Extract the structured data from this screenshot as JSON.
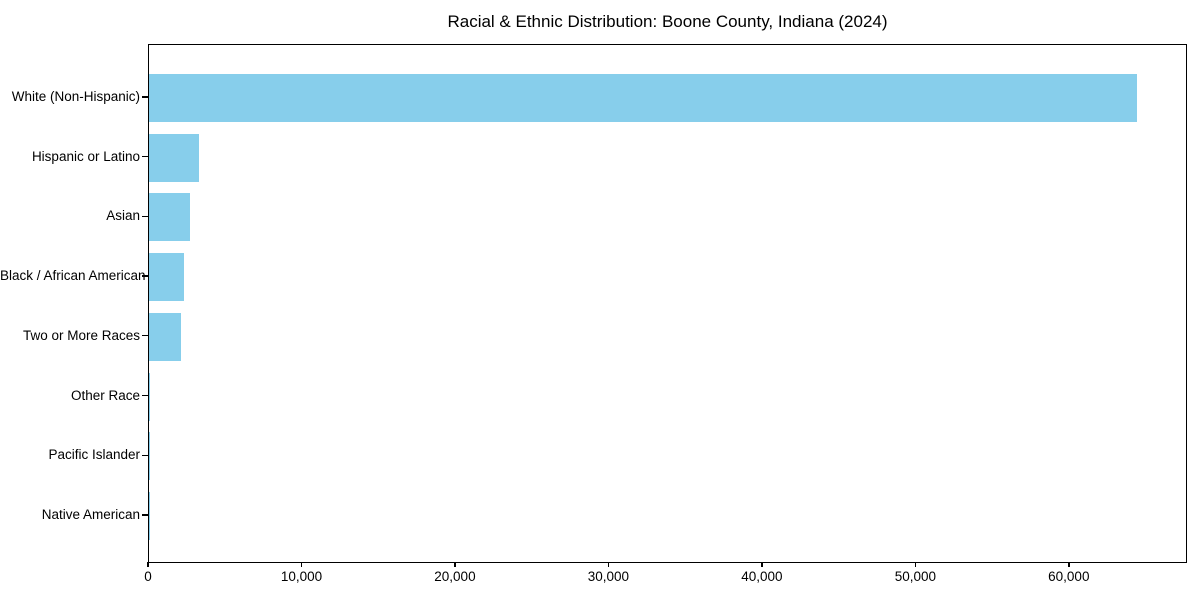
{
  "chart_data": {
    "type": "bar",
    "orientation": "horizontal",
    "title": "Racial & Ethnic Distribution: Boone County, Indiana (2024)",
    "categories": [
      "White (Non-Hispanic)",
      "Hispanic or Latino",
      "Asian",
      "Black / African American",
      "Two or More Races",
      "Other Race",
      "Pacific Islander",
      "Native American"
    ],
    "values": [
      64400,
      3250,
      2700,
      2300,
      2100,
      50,
      30,
      20
    ],
    "xlabel": "",
    "ylabel": "",
    "xlim": [
      0,
      67700
    ],
    "xticks": [
      0,
      10000,
      20000,
      30000,
      40000,
      50000,
      60000
    ],
    "xtick_labels": [
      "0",
      "10,000",
      "20,000",
      "30,000",
      "40,000",
      "50,000",
      "60,000"
    ],
    "bar_color": "#87CEEB",
    "axis_color": "#000000",
    "background_color": "#ffffff",
    "grid": false,
    "legend": "none"
  }
}
